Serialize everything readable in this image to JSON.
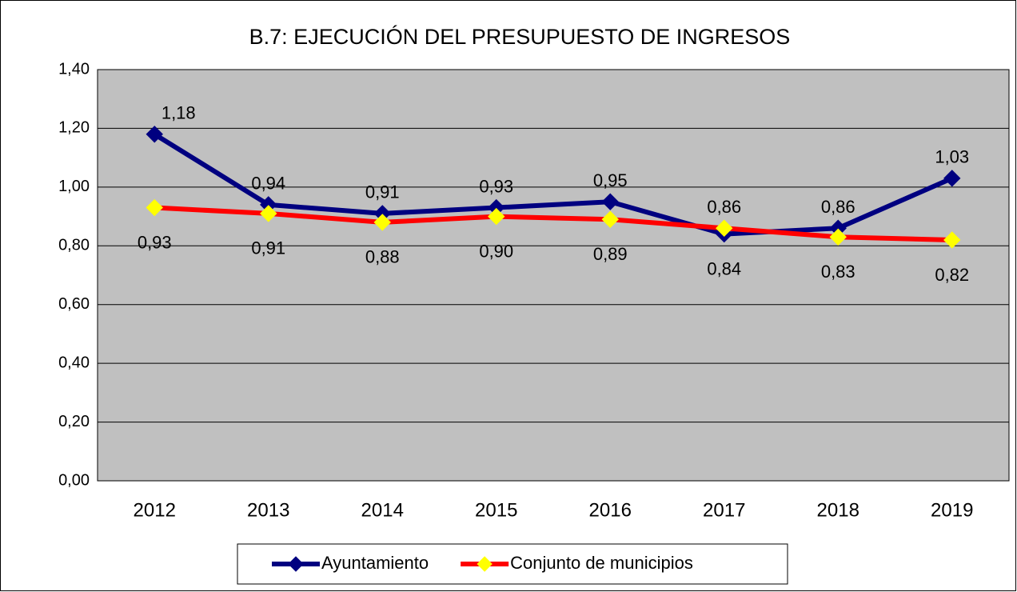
{
  "chart_data": {
    "type": "line",
    "title": "B.7: EJECUCIÓN DEL PRESUPUESTO DE INGRESOS",
    "categories": [
      "2012",
      "2013",
      "2014",
      "2015",
      "2016",
      "2017",
      "2018",
      "2019"
    ],
    "series": [
      {
        "name": "Ayuntamiento",
        "color": "#000080",
        "marker_color": "#000080",
        "values": [
          1.18,
          0.94,
          0.91,
          0.93,
          0.95,
          0.84,
          0.86,
          1.03
        ],
        "value_labels": [
          "1,18",
          "0,94",
          "0,91",
          "0,93",
          "0,95",
          "0,84",
          "0,86",
          "1,03"
        ]
      },
      {
        "name": "Conjunto de municipios",
        "color": "#ff0000",
        "marker_color": "#ffff00",
        "values": [
          0.93,
          0.91,
          0.88,
          0.9,
          0.89,
          0.86,
          0.83,
          0.82
        ],
        "value_labels": [
          "0,93",
          "0,91",
          "0,88",
          "0,90",
          "0,89",
          "0,86",
          "0,83",
          "0,82"
        ]
      }
    ],
    "ylim": [
      0,
      1.4
    ],
    "yticks": [
      {
        "value": 0,
        "label": "0,00"
      },
      {
        "value": 0.2,
        "label": "0,20"
      },
      {
        "value": 0.4,
        "label": "0,40"
      },
      {
        "value": 0.6,
        "label": "0,60"
      },
      {
        "value": 0.8,
        "label": "0,80"
      },
      {
        "value": 1.0,
        "label": "1,00"
      },
      {
        "value": 1.2,
        "label": "1,20"
      },
      {
        "value": 1.4,
        "label": "1,40"
      }
    ],
    "grid": true,
    "legend": "bottom"
  }
}
